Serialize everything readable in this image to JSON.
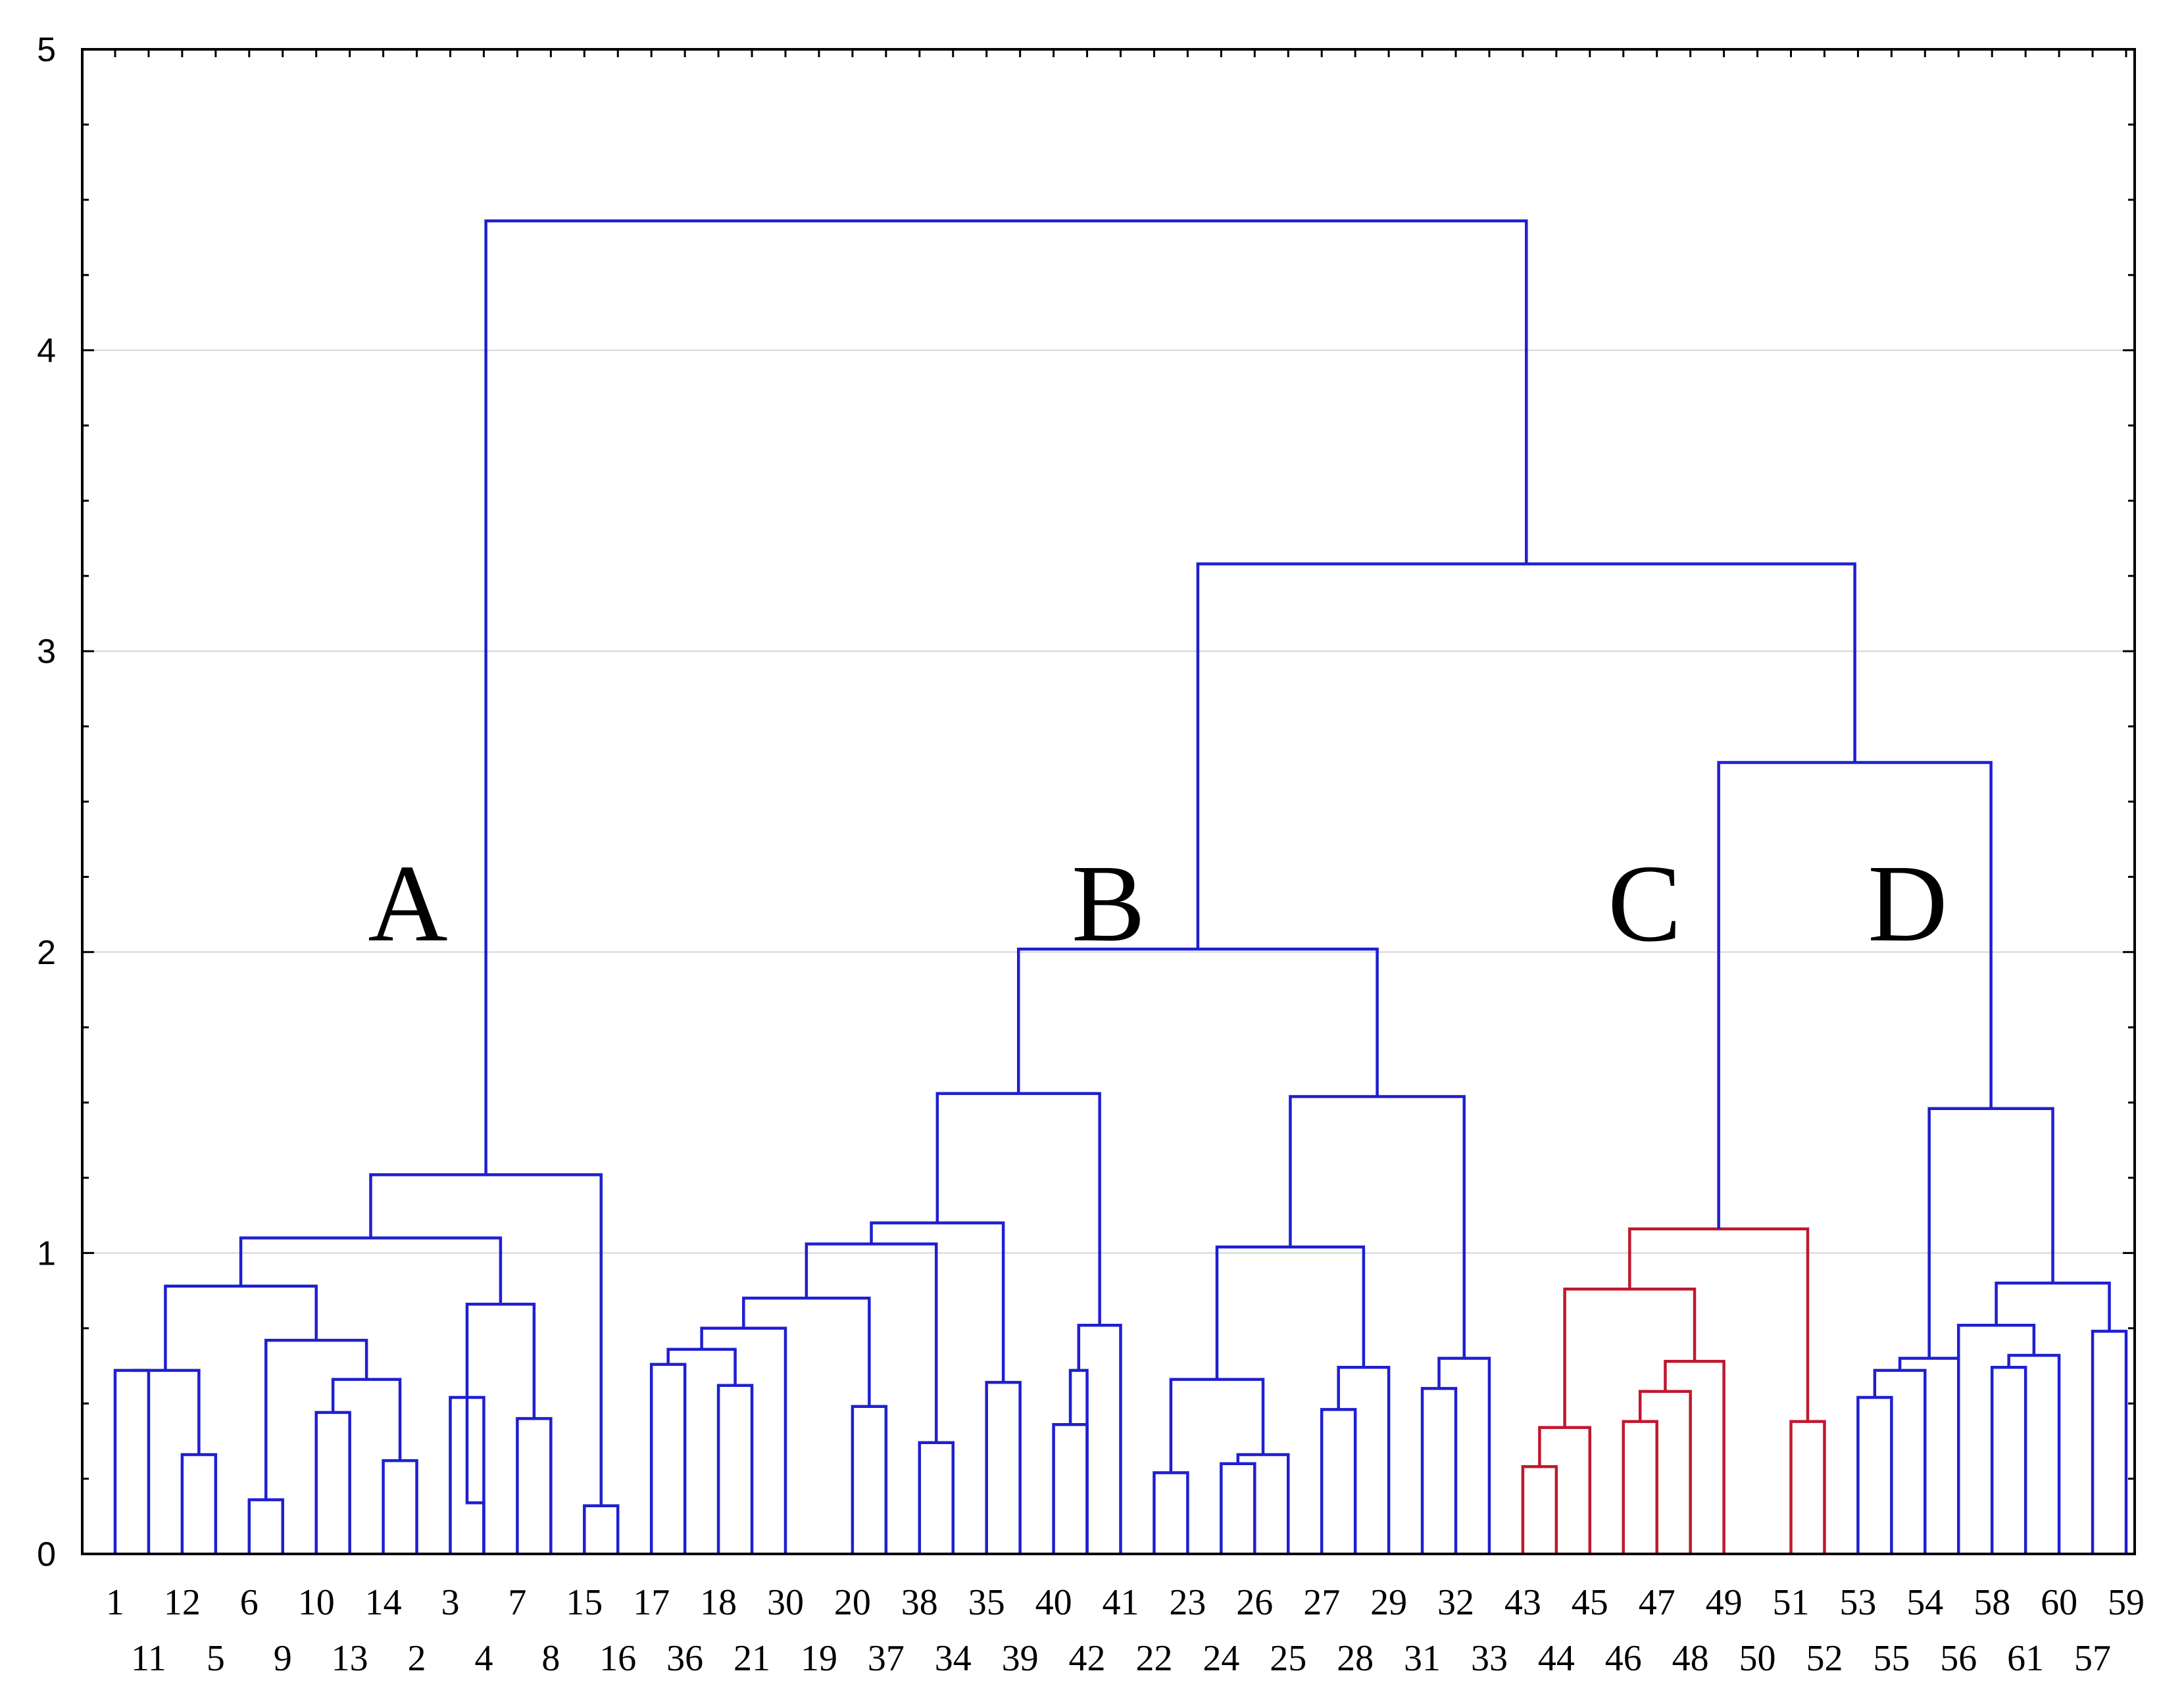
{
  "chart_data": {
    "type": "dendrogram",
    "title": "",
    "xlabel": "",
    "ylabel": "",
    "ylim": [
      0,
      5
    ],
    "yticks": [
      "0",
      "1",
      "2",
      "3",
      "4",
      "5"
    ],
    "grid": "horizontal",
    "leaf_order": [
      "1",
      "11",
      "12",
      "5",
      "6",
      "9",
      "10",
      "13",
      "14",
      "2",
      "3",
      "4",
      "7",
      "8",
      "15",
      "16",
      "17",
      "36",
      "18",
      "21",
      "30",
      "19",
      "20",
      "37",
      "38",
      "34",
      "35",
      "39",
      "40",
      "42",
      "41",
      "22",
      "23",
      "24",
      "26",
      "25",
      "27",
      "28",
      "29",
      "31",
      "32",
      "33",
      "43",
      "44",
      "45",
      "46",
      "47",
      "48",
      "49",
      "50",
      "51",
      "52",
      "53",
      "55",
      "54",
      "56",
      "58",
      "61",
      "60",
      "57",
      "59"
    ],
    "merges": [
      {
        "id": "a1",
        "left": "1",
        "right": "11",
        "height": 0.61
      },
      {
        "id": "a2",
        "left": "12",
        "right": "5",
        "height": 0.33
      },
      {
        "id": "a3",
        "left": "a1",
        "right": "a2",
        "height": 0.61
      },
      {
        "id": "a4",
        "left": "6",
        "right": "9",
        "height": 0.18
      },
      {
        "id": "a5",
        "left": "10",
        "right": "13",
        "height": 0.47
      },
      {
        "id": "a6",
        "left": "14",
        "right": "2",
        "height": 0.31
      },
      {
        "id": "a7",
        "left": "a5",
        "right": "a6",
        "height": 0.58
      },
      {
        "id": "a8",
        "left": "a4",
        "right": "a7",
        "height": 0.71
      },
      {
        "id": "a9",
        "left": "a3",
        "right": "a8",
        "height": 0.89
      },
      {
        "id": "a10",
        "left": "3",
        "right": "4",
        "height": 0.52
      },
      {
        "id": "a11",
        "left": "a10",
        "right": "4",
        "height": 0.17
      },
      {
        "id": "a12",
        "left": "7",
        "right": "8",
        "height": 0.45
      },
      {
        "id": "a13",
        "left": "a10",
        "right": "a12",
        "height": 0.83
      },
      {
        "id": "a14",
        "left": "a9",
        "right": "a13",
        "height": 1.05
      },
      {
        "id": "a15",
        "left": "15",
        "right": "16",
        "height": 0.16
      },
      {
        "id": "A",
        "left": "a14",
        "right": "a15",
        "height": 1.26
      },
      {
        "id": "b1",
        "left": "17",
        "right": "36",
        "height": 0.63
      },
      {
        "id": "b2",
        "left": "18",
        "right": "21",
        "height": 0.56
      },
      {
        "id": "b3",
        "left": "b1",
        "right": "b2",
        "height": 0.68
      },
      {
        "id": "b4",
        "left": "b3",
        "right": "30",
        "height": 0.75
      },
      {
        "id": "b5",
        "left": "20",
        "right": "37",
        "height": 0.49
      },
      {
        "id": "b6",
        "left": "b4",
        "right": "b5",
        "height": 0.85
      },
      {
        "id": "b7",
        "left": "38",
        "right": "34",
        "height": 0.37
      },
      {
        "id": "b8",
        "left": "b6",
        "right": "b7",
        "height": 1.03
      },
      {
        "id": "b9",
        "left": "35",
        "right": "39",
        "height": 0.57
      },
      {
        "id": "b10",
        "left": "b8",
        "right": "b9",
        "height": 1.1
      },
      {
        "id": "b11",
        "left": "40",
        "right": "42",
        "height": 0.43
      },
      {
        "id": "b12",
        "left": "b11",
        "right": "42",
        "height": 0.61
      },
      {
        "id": "b13",
        "left": "b12",
        "right": "41",
        "height": 0.76
      },
      {
        "id": "b14",
        "left": "b10",
        "right": "b13",
        "height": 1.53
      },
      {
        "id": "b15",
        "left": "22",
        "right": "23",
        "height": 0.27
      },
      {
        "id": "b16",
        "left": "24",
        "right": "26",
        "height": 0.3
      },
      {
        "id": "b17",
        "left": "b16",
        "right": "25",
        "height": 0.33
      },
      {
        "id": "b18",
        "left": "b15",
        "right": "b17",
        "height": 0.58
      },
      {
        "id": "b19",
        "left": "27",
        "right": "28",
        "height": 0.48
      },
      {
        "id": "b20",
        "left": "b19",
        "right": "29",
        "height": 0.62
      },
      {
        "id": "b21",
        "left": "b18",
        "right": "b20",
        "height": 1.02
      },
      {
        "id": "b22",
        "left": "31",
        "right": "32",
        "height": 0.55
      },
      {
        "id": "b23",
        "left": "b22",
        "right": "33",
        "height": 0.65
      },
      {
        "id": "b24",
        "left": "b21",
        "right": "b23",
        "height": 1.52
      },
      {
        "id": "B",
        "left": "b14",
        "right": "b24",
        "height": 2.01
      },
      {
        "id": "c1",
        "left": "43",
        "right": "44",
        "height": 0.29
      },
      {
        "id": "c2",
        "left": "c1",
        "right": "45",
        "height": 0.42
      },
      {
        "id": "c3",
        "left": "46",
        "right": "47",
        "height": 0.44
      },
      {
        "id": "c4",
        "left": "c3",
        "right": "48",
        "height": 0.54
      },
      {
        "id": "c5",
        "left": "c4",
        "right": "49",
        "height": 0.64
      },
      {
        "id": "c6",
        "left": "c2",
        "right": "c5",
        "height": 0.88
      },
      {
        "id": "c7",
        "left": "51",
        "right": "52",
        "height": 0.44
      },
      {
        "id": "C",
        "left": "c6",
        "right": "c7",
        "height": 1.08
      },
      {
        "id": "d1",
        "left": "53",
        "right": "55",
        "height": 0.52
      },
      {
        "id": "d2",
        "left": "d1",
        "right": "54",
        "height": 0.61
      },
      {
        "id": "d3",
        "left": "d2",
        "right": "56",
        "height": 0.65
      },
      {
        "id": "d4",
        "left": "58",
        "right": "61",
        "height": 0.62
      },
      {
        "id": "d5",
        "left": "d4",
        "right": "60",
        "height": 0.66
      },
      {
        "id": "d6",
        "left": "d5",
        "right": "56",
        "height": 0.76
      },
      {
        "id": "d7",
        "left": "57",
        "right": "59",
        "height": 0.74
      },
      {
        "id": "d8",
        "left": "d6",
        "right": "d7",
        "height": 0.9
      },
      {
        "id": "D",
        "left": "d3",
        "right": "d8",
        "height": 1.48
      },
      {
        "id": "CD",
        "left": "C",
        "right": "D",
        "height": 2.63
      },
      {
        "id": "BCD",
        "left": "B",
        "right": "CD",
        "height": 3.29
      },
      {
        "id": "root",
        "left": "A",
        "right": "BCD",
        "height": 4.43
      }
    ],
    "clusters": [
      {
        "label": "A",
        "color": "#1f1fd0"
      },
      {
        "label": "B",
        "color": "#1f1fd0"
      },
      {
        "label": "C",
        "color": "#c0182e"
      },
      {
        "label": "D",
        "color": "#1f1fd0"
      }
    ],
    "x_labels_top": [
      "1",
      "12",
      "6",
      "10",
      "14",
      "3",
      "7",
      "15",
      "17",
      "18",
      "30",
      "20",
      "38",
      "35",
      "40",
      "41",
      "23",
      "26",
      "27",
      "29",
      "32",
      "43",
      "45",
      "47",
      "49",
      "51",
      "53",
      "54",
      "58",
      "60",
      "59"
    ],
    "x_labels_bottom": [
      "11",
      "5",
      "9",
      "13",
      "2",
      "4",
      "8",
      "16",
      "36",
      "21",
      "19",
      "37",
      "34",
      "39",
      "42",
      "22",
      "24",
      "25",
      "28",
      "31",
      "33",
      "44",
      "46",
      "48",
      "50",
      "52",
      "55",
      "56",
      "61",
      "57"
    ]
  }
}
